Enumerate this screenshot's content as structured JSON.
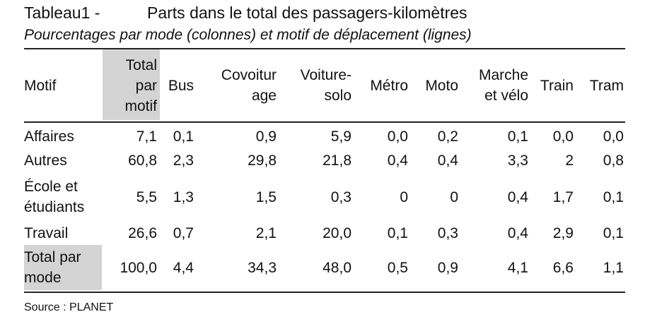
{
  "title": {
    "number": "Tableau1 -",
    "text": "Parts dans le total des passagers-kilomètres"
  },
  "subtitle": "Pourcentages par mode (colonnes) et motif de déplacement (lignes)",
  "columns": [
    [
      "Motif"
    ],
    [
      "Total",
      "par",
      "motif"
    ],
    [
      "Bus"
    ],
    [
      "Covoitur",
      "age"
    ],
    [
      "Voiture-",
      "solo"
    ],
    [
      "Métro"
    ],
    [
      "Moto"
    ],
    [
      "Marche",
      "et vélo"
    ],
    [
      "Train"
    ],
    [
      "Tram"
    ]
  ],
  "rows": [
    {
      "label": [
        "Affaires"
      ],
      "values": [
        "7,1",
        "0,1",
        "0,9",
        "5,9",
        "0,0",
        "0,2",
        "0,1",
        "0,0",
        "0,0"
      ]
    },
    {
      "label": [
        "Autres"
      ],
      "values": [
        "60,8",
        "2,3",
        "29,8",
        "21,8",
        "0,4",
        "0,4",
        "3,3",
        "2",
        "0,8"
      ]
    },
    {
      "label": [
        "École et",
        "étudiants"
      ],
      "values": [
        "5,5",
        "1,3",
        "1,5",
        "0,3",
        "0",
        "0",
        "0,4",
        "1,7",
        "0,1"
      ]
    },
    {
      "label": [
        "Travail"
      ],
      "values": [
        "26,6",
        "0,7",
        "2,1",
        "20,0",
        "0,1",
        "0,3",
        "0,4",
        "2,9",
        "0,1"
      ]
    },
    {
      "label": [
        "Total par",
        "mode"
      ],
      "values": [
        "100,0",
        "4,4",
        "34,3",
        "48,0",
        "0,5",
        "0,9",
        "4,1",
        "6,6",
        "1,1"
      ]
    }
  ],
  "source": "Source : PLANET",
  "colors": {
    "highlight": "#d4d4d4",
    "rule": "#222222",
    "text": "#111111"
  }
}
